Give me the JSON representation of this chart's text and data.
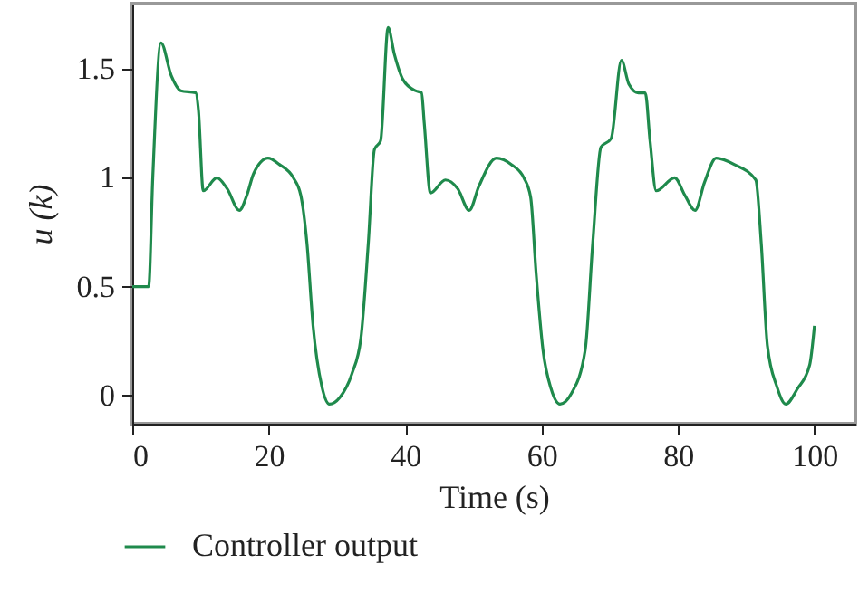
{
  "chart_data": {
    "type": "line",
    "xlabel": "Time (s)",
    "ylabel": "u (k)",
    "xlim": [
      0,
      106
    ],
    "ylim": [
      -0.13,
      1.8
    ],
    "xticks": [
      0,
      20,
      40,
      60,
      80,
      100
    ],
    "yticks": [
      0,
      0.5,
      1,
      1.5
    ],
    "grid": false,
    "legend": "bottom left",
    "x": [
      0,
      2.4,
      3,
      4.2,
      5.7,
      7.1,
      9.3,
      9.7,
      10.4,
      12.4,
      13.9,
      15.7,
      16.8,
      17.8,
      19.9,
      21.6,
      23.6,
      24.7,
      25.6,
      26.5,
      27.8,
      28.9,
      30.4,
      32.2,
      33.5,
      34.6,
      35.5,
      36.4,
      37.5,
      38.4,
      39.7,
      41.5,
      42.4,
      42.8,
      43.7,
      45.9,
      47.7,
      49.4,
      50.8,
      53.4,
      55.6,
      57.4,
      58.4,
      59.2,
      60.2,
      61.4,
      62.7,
      64.4,
      66.4,
      67.5,
      68.7,
      70.2,
      71.7,
      72.8,
      74.2,
      75.2,
      75.9,
      76.8,
      79.5,
      81,
      82.5,
      83.9,
      85.6,
      88.3,
      91.4,
      92.2,
      93.1,
      94.5,
      95.8,
      97.5,
      99.3,
      100
    ],
    "series": [
      {
        "name": "Controller output",
        "color": "#1f8a4c",
        "values": [
          0.5,
          0.5,
          1.0,
          1.62,
          1.47,
          1.4,
          1.39,
          1.31,
          0.94,
          1.0,
          0.95,
          0.85,
          0.92,
          1.02,
          1.09,
          1.06,
          1.0,
          0.92,
          0.7,
          0.32,
          0.04,
          -0.04,
          -0.01,
          0.1,
          0.26,
          0.7,
          1.13,
          1.17,
          1.69,
          1.57,
          1.45,
          1.4,
          1.39,
          1.25,
          0.93,
          0.99,
          0.95,
          0.85,
          0.96,
          1.09,
          1.06,
          1.0,
          0.91,
          0.56,
          0.21,
          0.03,
          -0.04,
          0.01,
          0.21,
          0.7,
          1.14,
          1.18,
          1.54,
          1.43,
          1.39,
          1.39,
          1.17,
          0.94,
          1.0,
          0.92,
          0.85,
          0.98,
          1.09,
          1.06,
          0.99,
          0.7,
          0.23,
          0.04,
          -0.04,
          0.03,
          0.14,
          0.32
        ]
      }
    ]
  }
}
